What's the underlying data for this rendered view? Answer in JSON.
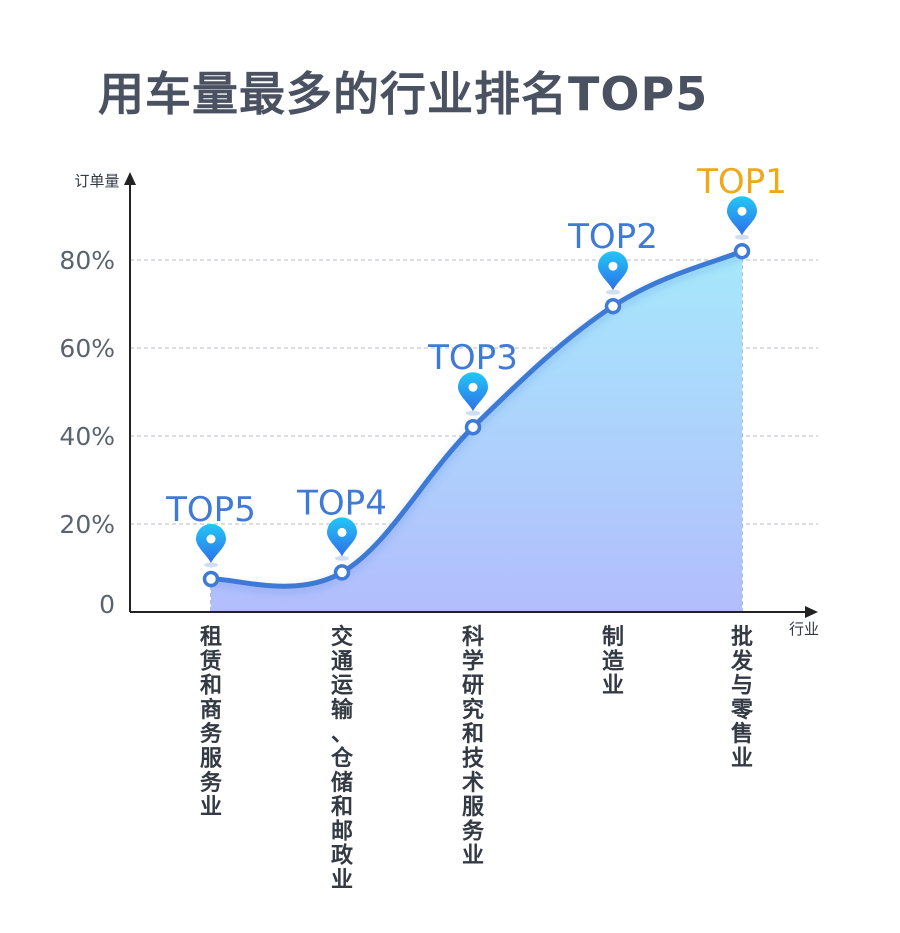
{
  "title": "用车量最多的行业排名TOP5",
  "chart_data": {
    "type": "area",
    "ylabel": "订单量",
    "xlabel": "行业",
    "ylim": [
      0,
      100
    ],
    "yticks": [
      "0",
      "20%",
      "40%",
      "60%",
      "80%"
    ],
    "ytick_values": [
      0,
      20,
      40,
      60,
      80
    ],
    "grid": true,
    "categories": [
      "租赁和商务服务业",
      "交通运输、仓储和邮政业",
      "科学研究和技术服务业",
      "制造业",
      "批发与零售业"
    ],
    "values": [
      7.5,
      9,
      42,
      69.5,
      82
    ],
    "ranks": [
      "TOP5",
      "TOP4",
      "TOP3",
      "TOP2",
      "TOP1"
    ],
    "colors": {
      "line": "#3e7ad6",
      "area_top": "#a6e8fb",
      "area_bottom": "#b3bdfd",
      "rank_label": "#3e7ad6",
      "top1_label": "#f0a81a",
      "marker": "#2f8ef0"
    },
    "marker_icon": "location-pin-icon"
  }
}
